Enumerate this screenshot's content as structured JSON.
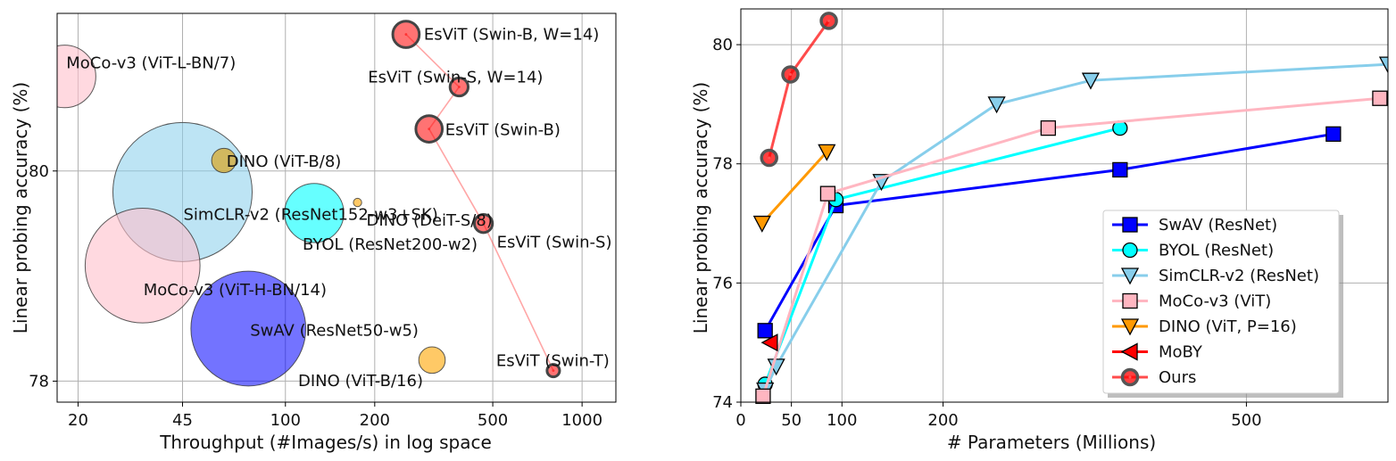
{
  "chart_data": [
    {
      "type": "scatter",
      "xlabel": "Throughput (#Images/s) in log space",
      "ylabel": "Linear probing accuracy (%)",
      "x_scale": "log",
      "xlim": [
        17,
        1300
      ],
      "ylim": [
        77.8,
        81.5
      ],
      "xticks": [
        20,
        45,
        100,
        200,
        500,
        1000
      ],
      "yticks": [
        78,
        80
      ],
      "grid": true,
      "points": [
        {
          "label": "MoCo-v3 (ViT-L-BN/7)",
          "x": 18,
          "y": 80.9,
          "size": 0.9,
          "color": "#ffc0cb",
          "opacity": 0.6
        },
        {
          "label": "SimCLR-v2 (ResNet152-w3+SK)",
          "x": 45,
          "y": 79.8,
          "size": 2.0,
          "color": "#87ceeb",
          "opacity": 0.55
        },
        {
          "label": "MoCo-v3 (ViT-H-BN/14)",
          "x": 33,
          "y": 79.1,
          "size": 1.65,
          "color": "#ffc0cb",
          "opacity": 0.6
        },
        {
          "label": "SwAV (ResNet50-w5)",
          "x": 75,
          "y": 78.5,
          "size": 1.65,
          "color": "#0000ff",
          "opacity": 0.55
        },
        {
          "label": "DINO (ViT-B/8)",
          "x": 62,
          "y": 80.1,
          "size": 0.35,
          "color": "#daa520",
          "opacity": 0.7
        },
        {
          "label": "BYOL (ResNet200-w2)",
          "x": 125,
          "y": 79.6,
          "size": 0.85,
          "color": "#00ffff",
          "opacity": 0.6
        },
        {
          "label": "DINO (DeiT-S/8)",
          "x": 175,
          "y": 79.7,
          "size": 0.12,
          "color": "#ffa500",
          "opacity": 0.6
        },
        {
          "label": "DINO (ViT-B/16)",
          "x": 312,
          "y": 78.2,
          "size": 0.38,
          "color": "#ffa500",
          "opacity": 0.6
        }
      ],
      "series": [
        {
          "name": "EsViT",
          "color": "#ff0000",
          "points": [
            {
              "label": "EsViT (Swin-B, W=14)",
              "x": 255,
              "y": 81.3,
              "size": 0.38
            },
            {
              "label": "EsViT (Swin-S, W=14)",
              "x": 385,
              "y": 80.8,
              "size": 0.26
            },
            {
              "label": "EsViT (Swin-B)",
              "x": 305,
              "y": 80.4,
              "size": 0.38
            },
            {
              "label": "EsViT (Swin-S)",
              "x": 465,
              "y": 79.5,
              "size": 0.26
            },
            {
              "label": "EsViT (Swin-T)",
              "x": 800,
              "y": 78.1,
              "size": 0.18
            }
          ]
        }
      ]
    },
    {
      "type": "line",
      "xlabel": "# Parameters (Millions)",
      "ylabel": "Linear probing accuracy (%)",
      "xlim": [
        0,
        640
      ],
      "ylim": [
        74,
        80.6
      ],
      "xticks": [
        0,
        50,
        100,
        200,
        500
      ],
      "yticks": [
        74,
        76,
        78,
        80
      ],
      "grid": true,
      "legend": "lower-right",
      "series": [
        {
          "name": "SwAV (ResNet)",
          "color": "#0000ff",
          "marker": "square",
          "x": [
            24,
            94,
            375,
            586
          ],
          "y": [
            75.2,
            77.3,
            77.9,
            78.5
          ]
        },
        {
          "name": "BYOL (ResNet)",
          "color": "#00ffff",
          "marker": "circle",
          "x": [
            24,
            94,
            375
          ],
          "y": [
            74.3,
            77.4,
            78.6
          ]
        },
        {
          "name": "SimCLR-v2 (ResNet)",
          "color": "#87ceeb",
          "marker": "triangle-down",
          "x": [
            24,
            35,
            139,
            253,
            346,
            640
          ],
          "y": [
            74.2,
            74.6,
            77.7,
            79.0,
            79.4,
            79.67
          ]
        },
        {
          "name": "MoCo-v3 (ViT)",
          "color": "#ffb6c1",
          "marker": "square",
          "x": [
            22,
            86,
            304,
            632
          ],
          "y": [
            74.1,
            77.5,
            78.6,
            79.1
          ]
        },
        {
          "name": "DINO (ViT, P=16)",
          "color": "#ff9900",
          "marker": "triangle-down",
          "x": [
            21,
            85
          ],
          "y": [
            77.0,
            78.2
          ]
        },
        {
          "name": "MoBY",
          "color": "#ff0000",
          "marker": "triangle-left",
          "x": [
            29
          ],
          "y": [
            75.0
          ]
        },
        {
          "name": "Ours",
          "color": "#ff0000",
          "marker": "ringed-circle",
          "x": [
            28,
            49,
            87
          ],
          "y": [
            78.1,
            79.5,
            80.4
          ]
        }
      ]
    }
  ]
}
